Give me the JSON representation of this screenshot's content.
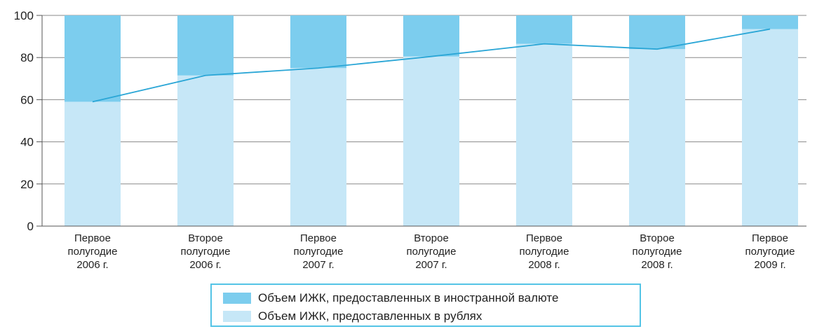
{
  "chart_data": {
    "type": "bar",
    "stacked": true,
    "categories": [
      [
        "Первое",
        "полугодие",
        "2006 г."
      ],
      [
        "Второе",
        "полугодие",
        "2006 г."
      ],
      [
        "Первое",
        "полугодие",
        "2007 г."
      ],
      [
        "Второе",
        "полугодие",
        "2007 г."
      ],
      [
        "Первое",
        "полугодие",
        "2008 г."
      ],
      [
        "Второе",
        "полугодие",
        "2008 г."
      ],
      [
        "Первое",
        "полугодие",
        "2009 г."
      ]
    ],
    "series": [
      {
        "name": "Объем ИЖК, предоставленных в рублях",
        "color": "#c6e7f7",
        "values": [
          59,
          71.5,
          75,
          80.5,
          86.5,
          84,
          93.5
        ]
      },
      {
        "name": "Объем ИЖК, предоставленных в иностранной валюте",
        "color": "#7ccdee",
        "values": [
          41,
          28.5,
          25,
          19.5,
          13.5,
          16,
          6.5
        ]
      }
    ],
    "line": {
      "color": "#2aa6d6",
      "values": [
        59,
        71.5,
        75,
        80.5,
        86.5,
        84,
        93.5
      ]
    },
    "ylim": [
      0,
      100
    ],
    "yticks": [
      "0",
      "20",
      "40",
      "60",
      "80",
      "100"
    ],
    "grid": true,
    "legend": {
      "placement": "bottom-center",
      "order": [
        1,
        0
      ]
    }
  }
}
